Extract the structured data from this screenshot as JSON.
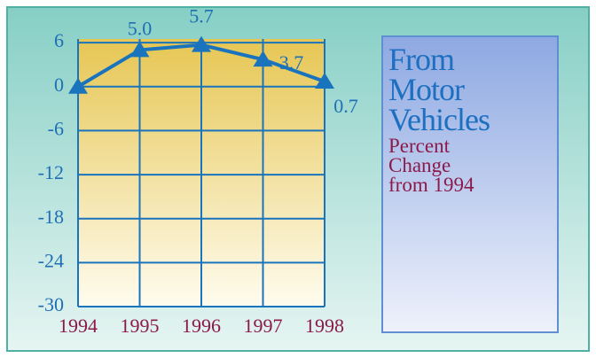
{
  "chart_data": {
    "type": "line",
    "title": "From Motor Vehicles",
    "subtitle": "Percent Change from 1994",
    "categories": [
      "1994",
      "1995",
      "1996",
      "1997",
      "1998"
    ],
    "series": [
      {
        "color": "#1a74bd",
        "values": [
          0,
          5.0,
          5.7,
          3.7,
          0.7
        ],
        "value_labels": [
          null,
          "5.0",
          "5.7",
          "3.7",
          "0.7"
        ]
      }
    ],
    "ylim": [
      -30,
      6.5
    ],
    "yticks": [
      6,
      0,
      -6,
      -12,
      -18,
      -24,
      -30
    ],
    "grid": true
  }
}
